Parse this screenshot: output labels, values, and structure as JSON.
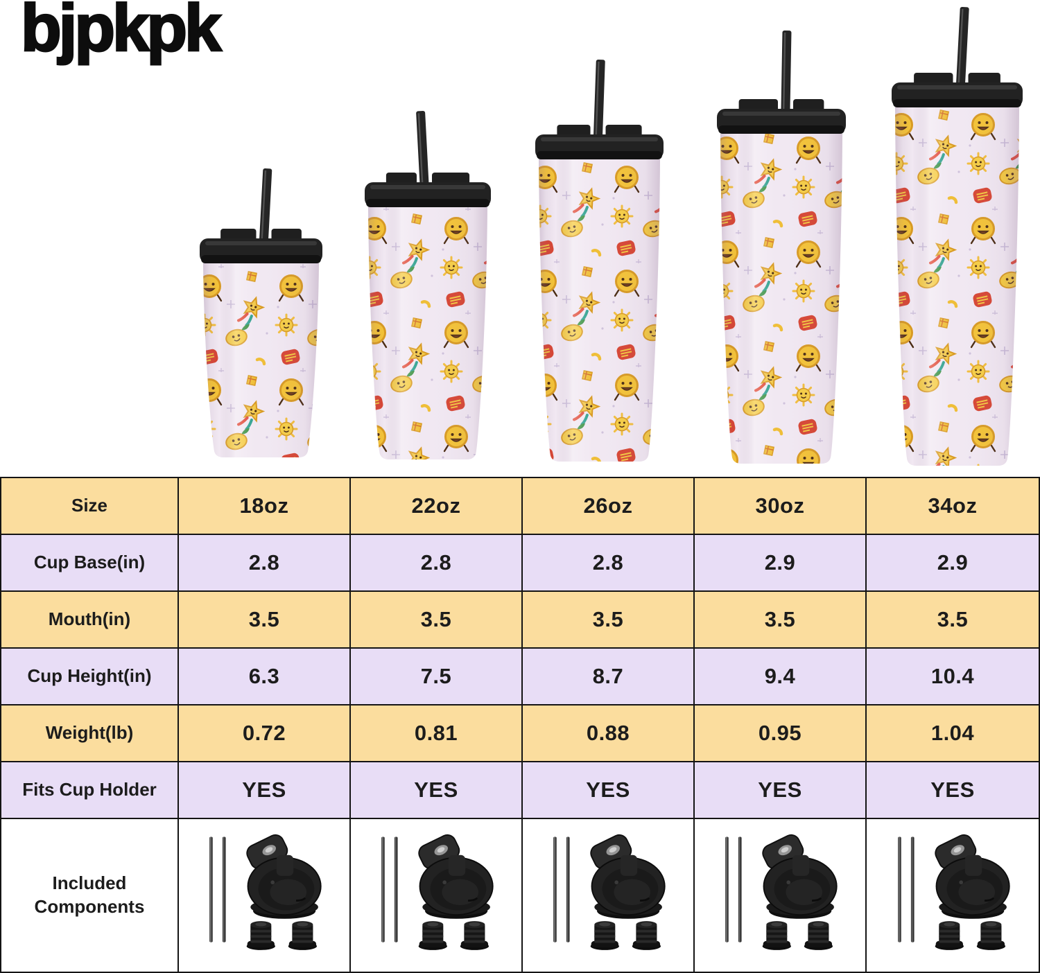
{
  "brand": {
    "logo": "bjpkpk"
  },
  "tumblers": [
    {
      "size": "18oz",
      "pattern": "retro-emoji-characters",
      "lid": "black-straw-lid"
    },
    {
      "size": "22oz",
      "pattern": "retro-emoji-characters",
      "lid": "black-straw-lid"
    },
    {
      "size": "26oz",
      "pattern": "retro-emoji-characters",
      "lid": "black-straw-lid"
    },
    {
      "size": "30oz",
      "pattern": "retro-emoji-characters",
      "lid": "black-straw-lid"
    },
    {
      "size": "34oz",
      "pattern": "retro-emoji-characters",
      "lid": "black-straw-lid"
    }
  ],
  "table": {
    "rows": [
      {
        "label": "Size",
        "values": [
          "18oz",
          "22oz",
          "26oz",
          "30oz",
          "34oz"
        ]
      },
      {
        "label": "Cup Base(in)",
        "values": [
          "2.8",
          "2.8",
          "2.8",
          "2.9",
          "2.9"
        ]
      },
      {
        "label": "Mouth(in)",
        "values": [
          "3.5",
          "3.5",
          "3.5",
          "3.5",
          "3.5"
        ]
      },
      {
        "label": "Cup Height(in)",
        "values": [
          "6.3",
          "7.5",
          "8.7",
          "9.4",
          "10.4"
        ]
      },
      {
        "label": "Weight(lb)",
        "values": [
          "0.72",
          "0.81",
          "0.88",
          "0.95",
          "1.04"
        ]
      },
      {
        "label": "Fits Cup Holder",
        "values": [
          "YES",
          "YES",
          "YES",
          "YES",
          "YES"
        ]
      },
      {
        "label": "Included Components"
      }
    ]
  },
  "included_kit": {
    "items": [
      "two-metal-straws",
      "flip-top-lid",
      "two-straw-stoppers"
    ]
  },
  "colors": {
    "row_yellow": "#FBDD9E",
    "row_lavender": "#E8DDF6",
    "cup_body": "#F1E8F2",
    "lid_black": "#222222",
    "text": "#1C1C1C",
    "background": "#FFFFFF"
  }
}
